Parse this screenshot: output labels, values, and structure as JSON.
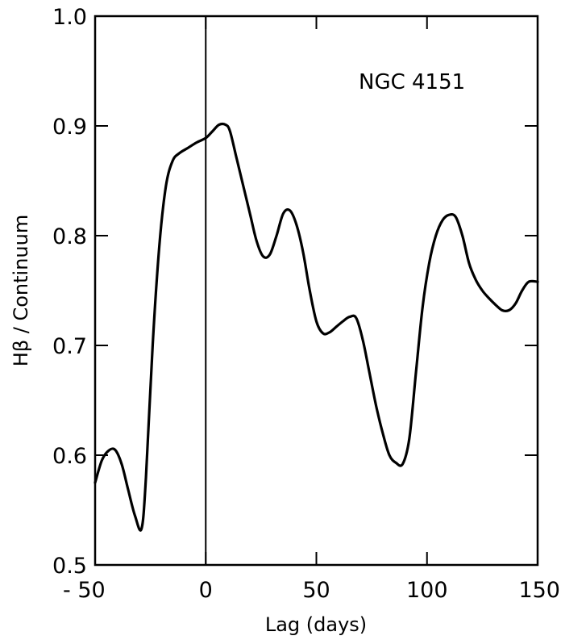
{
  "chart_data": {
    "type": "line",
    "xlabel": "Lag (days)",
    "ylabel": "Hβ / Continuum",
    "annotation": "NGC 4151",
    "xlim": [
      -50,
      150
    ],
    "ylim": [
      0.5,
      1.0
    ],
    "xticks": [
      -50,
      0,
      50,
      100,
      150
    ],
    "xtick_labels": [
      "- 50",
      "0",
      "50",
      "100",
      "150"
    ],
    "yticks": [
      0.5,
      0.6,
      0.7,
      0.8,
      0.9,
      1.0
    ],
    "ytick_labels": [
      "0.5",
      "0.6",
      "0.7",
      "0.8",
      "0.9",
      "1.0"
    ],
    "vline_x": 0,
    "grid": false,
    "series": [
      {
        "x": [
          -50,
          -47,
          -44,
          -41,
          -38,
          -35,
          -32,
          -29,
          -27,
          -24,
          -21,
          -18,
          -15,
          -12,
          -8,
          -4,
          0,
          3,
          6,
          9,
          11,
          14,
          17,
          20,
          23,
          26,
          29,
          32,
          35,
          38,
          41,
          44,
          47,
          50,
          53,
          56,
          59,
          62,
          65,
          68,
          71,
          74,
          77,
          80,
          83,
          86,
          89,
          92,
          95,
          98,
          101,
          104,
          107,
          110,
          113,
          116,
          119,
          122,
          125,
          128,
          131,
          134,
          137,
          140,
          143,
          146,
          150
        ],
        "y": [
          0.575,
          0.595,
          0.604,
          0.605,
          0.592,
          0.568,
          0.545,
          0.533,
          0.58,
          0.7,
          0.79,
          0.845,
          0.868,
          0.875,
          0.88,
          0.885,
          0.889,
          0.895,
          0.901,
          0.901,
          0.895,
          0.87,
          0.845,
          0.82,
          0.795,
          0.781,
          0.783,
          0.8,
          0.82,
          0.823,
          0.81,
          0.785,
          0.75,
          0.722,
          0.711,
          0.712,
          0.717,
          0.722,
          0.726,
          0.725,
          0.705,
          0.675,
          0.645,
          0.62,
          0.6,
          0.593,
          0.592,
          0.615,
          0.675,
          0.735,
          0.775,
          0.8,
          0.814,
          0.819,
          0.817,
          0.8,
          0.775,
          0.76,
          0.75,
          0.743,
          0.737,
          0.732,
          0.732,
          0.738,
          0.75,
          0.758,
          0.758
        ]
      }
    ]
  }
}
